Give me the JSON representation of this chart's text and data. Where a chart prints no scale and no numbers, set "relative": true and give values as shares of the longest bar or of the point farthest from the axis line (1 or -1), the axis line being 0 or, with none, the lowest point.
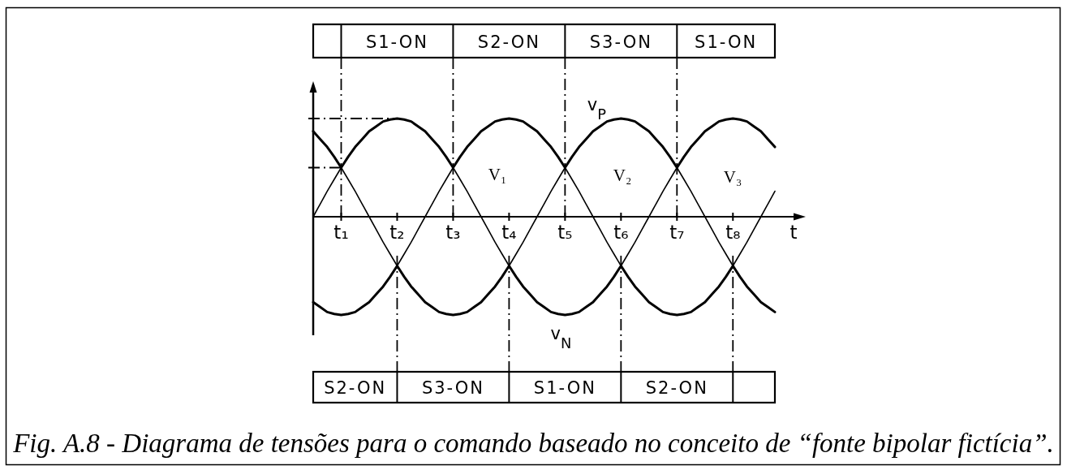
{
  "chart_data": {
    "type": "line",
    "xlabel": "t",
    "relative": true,
    "categories": [
      null,
      null,
      null,
      null,
      "t₁",
      null,
      null,
      null,
      null,
      null,
      null,
      null,
      "t₂",
      null,
      null,
      null,
      null,
      null,
      null,
      null,
      "t₃",
      null,
      null,
      null,
      null,
      null,
      null,
      null,
      "t₄",
      null,
      null,
      null,
      null,
      null,
      null,
      null,
      "t₅",
      null,
      null,
      null,
      null,
      null,
      null,
      null,
      "t₆",
      null,
      null,
      null,
      null,
      null,
      null,
      null,
      "t₇",
      null,
      null,
      null,
      null,
      null,
      null,
      null,
      "t₈",
      null,
      null,
      null,
      null,
      null,
      null
    ],
    "series": [
      {
        "name": "v$_{P}$",
        "color": "#000000",
        "values": [
          0.87,
          0.79,
          0.71,
          0.61,
          0.5,
          0.61,
          0.71,
          0.79,
          0.87,
          0.92,
          0.97,
          0.99,
          1,
          0.99,
          0.97,
          0.92,
          0.87,
          0.79,
          0.71,
          0.61,
          0.5,
          0.61,
          0.71,
          0.79,
          0.87,
          0.92,
          0.97,
          0.99,
          1,
          0.99,
          0.97,
          0.92,
          0.87,
          0.79,
          0.71,
          0.61,
          0.5,
          0.61,
          0.71,
          0.79,
          0.87,
          0.92,
          0.97,
          0.99,
          1,
          0.99,
          0.97,
          0.92,
          0.87,
          0.79,
          0.71,
          0.61,
          0.5,
          0.61,
          0.71,
          0.79,
          0.87,
          0.92,
          0.97,
          0.99,
          1,
          0.99,
          0.97,
          0.92,
          0.87,
          0.79,
          0.71
        ]
      },
      {
        "color": "#000000",
        "values": [
          0,
          0.13,
          0.26,
          0.38,
          0.5,
          0.38,
          0.26,
          0.13,
          0,
          -0.13,
          -0.26,
          -0.38,
          -0.5,
          -0.38,
          -0.26,
          -0.13,
          0,
          0.13,
          0.26,
          0.38,
          0.5,
          0.38,
          0.26,
          0.13,
          0,
          -0.13,
          -0.26,
          -0.38,
          -0.5,
          -0.38,
          -0.26,
          -0.13,
          0,
          0.13,
          0.26,
          0.38,
          0.5,
          0.38,
          0.26,
          0.13,
          0,
          -0.13,
          -0.26,
          -0.38,
          -0.5,
          -0.38,
          -0.26,
          -0.13,
          0,
          0.13,
          0.26,
          0.38,
          0.5,
          0.38,
          0.26,
          0.13,
          0,
          -0.13,
          -0.26,
          -0.38,
          -0.5,
          -0.38,
          -0.26,
          -0.13,
          0,
          0.13,
          0.26
        ]
      },
      {
        "name": "v$_{N}$",
        "color": "#000000",
        "values": [
          -0.87,
          -0.92,
          -0.97,
          -0.99,
          -1,
          -0.99,
          -0.97,
          -0.92,
          -0.87,
          -0.79,
          -0.71,
          -0.61,
          -0.5,
          -0.61,
          -0.71,
          -0.79,
          -0.87,
          -0.92,
          -0.97,
          -0.99,
          -1,
          -0.99,
          -0.97,
          -0.92,
          -0.87,
          -0.79,
          -0.71,
          -0.61,
          -0.5,
          -0.61,
          -0.71,
          -0.79,
          -0.87,
          -0.92,
          -0.97,
          -0.99,
          -1,
          -0.99,
          -0.97,
          -0.92,
          -0.87,
          -0.79,
          -0.71,
          -0.61,
          -0.5,
          -0.61,
          -0.71,
          -0.79,
          -0.87,
          -0.92,
          -0.97,
          -0.99,
          -1,
          -0.99,
          -0.97,
          -0.92,
          -0.87,
          -0.79,
          -0.71,
          -0.61,
          -0.5,
          -0.61,
          -0.71,
          -0.79,
          -0.87,
          -0.92,
          -0.97
        ]
      }
    ],
    "ref_lines": [
      {
        "axis": "y",
        "value": 1,
        "line_style": "dashed"
      },
      {
        "axis": "x",
        "value": "t₁",
        "line_style": "dashed"
      },
      {
        "axis": "x",
        "value": "t₂",
        "line_style": "dashed"
      },
      {
        "axis": "x",
        "value": "t₃",
        "line_style": "dashed"
      },
      {
        "axis": "x",
        "value": "t₄",
        "line_style": "dashed"
      },
      {
        "axis": "x",
        "value": "t₅",
        "line_style": "dashed"
      },
      {
        "axis": "x",
        "value": "t₆",
        "line_style": "dashed"
      },
      {
        "axis": "x",
        "value": "t₇",
        "line_style": "dashed"
      },
      {
        "axis": "x",
        "value": "t₈",
        "line_style": "dashed"
      }
    ],
    "annotations": [
      "Fig. A.8 - Diagrama de tensões para o comando baseado no conceito de “fonte bipolar fictícia”.",
      "V₁",
      "V₂",
      "V₃",
      "S1-ON",
      "S2-ON",
      "S3-ON",
      "S1-ON",
      "S2-ON",
      "S3-ON",
      "S1-ON",
      "S2-ON"
    ]
  }
}
